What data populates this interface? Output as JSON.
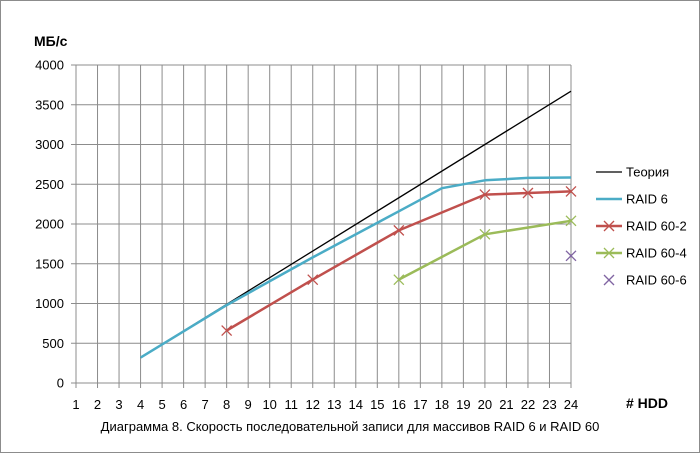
{
  "chart_data": {
    "type": "line",
    "title": "",
    "caption": "Диаграмма 8. Скорость последовательной записи для массивов RAID 6 и RAID 60",
    "ylabel": "МБ/с",
    "xlabel": "# HDD",
    "xlim": [
      1,
      24
    ],
    "ylim": [
      0,
      4000
    ],
    "x_ticks": [
      "1",
      "2",
      "3",
      "4",
      "5",
      "6",
      "7",
      "8",
      "9",
      "10",
      "11",
      "12",
      "13",
      "14",
      "15",
      "16",
      "17",
      "18",
      "19",
      "20",
      "21",
      "22",
      "23",
      "24"
    ],
    "y_ticks": [
      "0",
      "500",
      "1000",
      "1500",
      "2000",
      "2500",
      "3000",
      "3500",
      "4000"
    ],
    "grid": true,
    "legend_position": "right",
    "series": [
      {
        "name": "Теория",
        "color": "#000000",
        "marker": "none",
        "width": 1.3,
        "x": [
          4,
          24
        ],
        "y": [
          320,
          3670
        ]
      },
      {
        "name": "RAID 6",
        "color": "#4bacc6",
        "marker": "none",
        "width": 2.5,
        "x": [
          4,
          8,
          12,
          16,
          18,
          20,
          22,
          24
        ],
        "y": [
          320,
          980,
          1580,
          2160,
          2450,
          2550,
          2580,
          2585
        ]
      },
      {
        "name": "RAID 60-2",
        "color": "#c0504d",
        "marker": "x",
        "width": 2.5,
        "x": [
          8,
          12,
          16,
          20,
          22,
          24
        ],
        "y": [
          660,
          1300,
          1920,
          2370,
          2390,
          2410
        ]
      },
      {
        "name": "RAID 60-4",
        "color": "#9bbb59",
        "marker": "x",
        "width": 2.5,
        "x": [
          16,
          20,
          24
        ],
        "y": [
          1300,
          1870,
          2040
        ]
      },
      {
        "name": "RAID 60-6",
        "color": "#8064a2",
        "marker": "x",
        "width": 0,
        "x": [
          24
        ],
        "y": [
          1600
        ]
      }
    ]
  }
}
